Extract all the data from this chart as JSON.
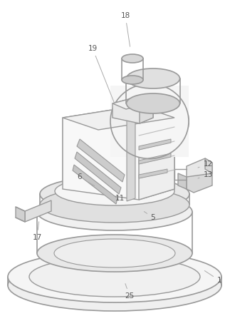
{
  "background_color": "#ffffff",
  "line_color": "#999999",
  "line_width": 1.0,
  "label_color": "#555555",
  "fig_width": 3.23,
  "fig_height": 4.43,
  "dpi": 100
}
